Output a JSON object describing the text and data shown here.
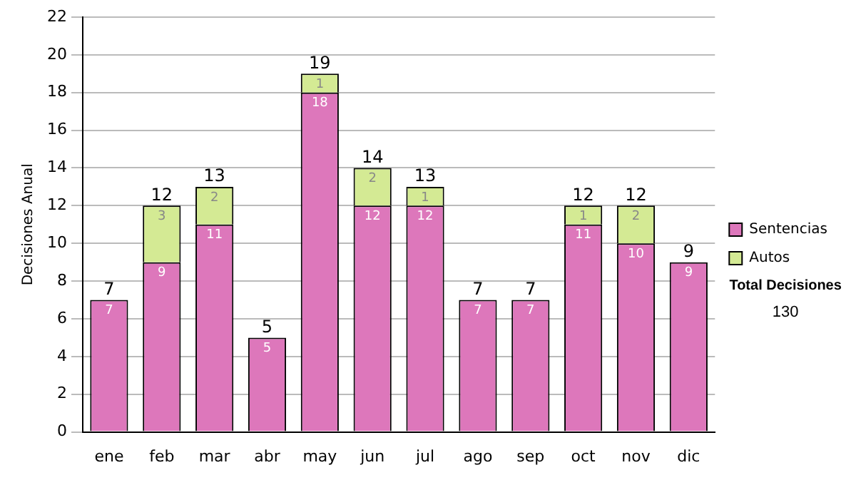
{
  "chart_data": {
    "type": "bar",
    "stacked": true,
    "ylabel": "Decisiones Anual",
    "categories": [
      "ene",
      "feb",
      "mar",
      "abr",
      "may",
      "jun",
      "jul",
      "ago",
      "sep",
      "oct",
      "nov",
      "dic"
    ],
    "series": [
      {
        "name": "Sentencias",
        "color": "#dd77bb",
        "values": [
          7,
          9,
          11,
          5,
          18,
          12,
          12,
          7,
          7,
          11,
          10,
          9
        ],
        "value_labels": [
          "7",
          "9",
          "11",
          "5",
          "18",
          "12",
          "12",
          "7",
          "7",
          "11",
          "10",
          "9"
        ]
      },
      {
        "name": "Autos",
        "color": "#d4ea94",
        "values": [
          0,
          3,
          2,
          0,
          1,
          2,
          1,
          0,
          0,
          1,
          2,
          0
        ],
        "value_labels": [
          null,
          "3",
          "2",
          null,
          "1",
          "2",
          "1",
          null,
          null,
          "1",
          "2",
          null
        ]
      }
    ],
    "totals": [
      "7",
      "12",
      "13",
      "5",
      "19",
      "14",
      "13",
      "7",
      "7",
      "12",
      "12",
      "9"
    ],
    "ylim": [
      0,
      22
    ],
    "yticks": [
      0,
      2,
      4,
      6,
      8,
      10,
      12,
      14,
      16,
      18,
      20,
      22
    ],
    "grid": "y",
    "legend": "right",
    "annotations": [
      "Total Decisiones",
      "130"
    ]
  }
}
